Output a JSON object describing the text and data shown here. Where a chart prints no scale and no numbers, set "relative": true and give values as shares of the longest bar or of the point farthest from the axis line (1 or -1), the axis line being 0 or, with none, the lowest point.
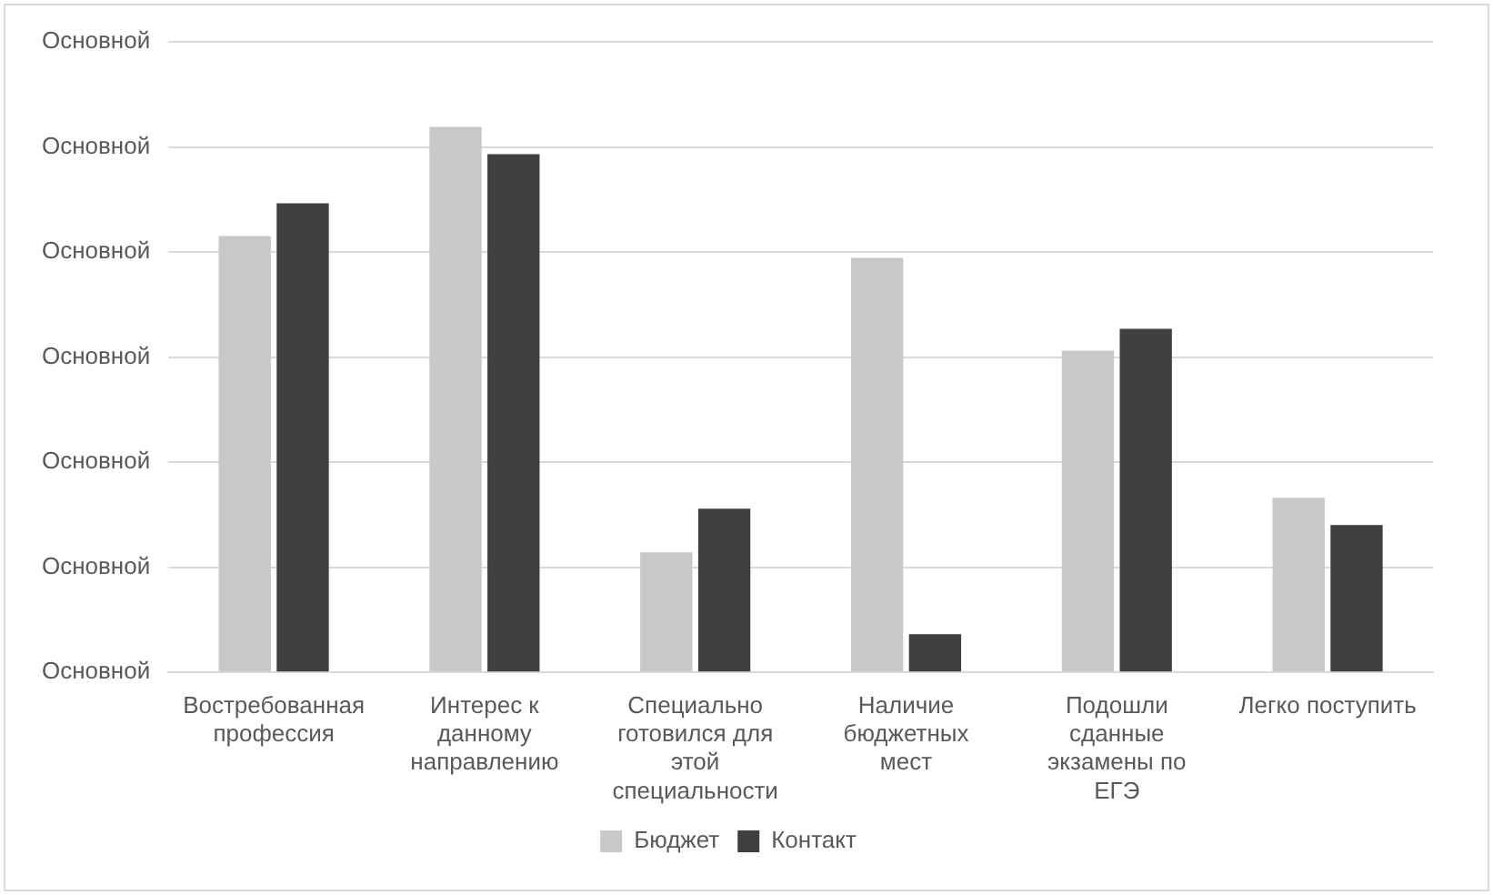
{
  "chart_data": {
    "type": "bar",
    "relative": true,
    "categories": [
      "Востребованная профессия",
      "Интерес к данному направлению",
      "Специально готовился для этой специальности",
      "Наличие бюджетных мест",
      "Подошли сданные экзамены по ЕГЭ",
      "Легко поступить"
    ],
    "series": [
      {
        "name": "Бюджет",
        "color": "#c8c8c8",
        "values": [
          0.8,
          1,
          0.22,
          0.76,
          0.59,
          0.32
        ]
      },
      {
        "name": "Контакт",
        "color": "#404040",
        "values": [
          0.86,
          0.95,
          0.3,
          0.07,
          0.63,
          0.27
        ]
      }
    ],
    "annotations": [
      "Основной",
      "Основной",
      "Основной",
      "Основной",
      "Основной",
      "Основной",
      "Основной"
    ],
    "grid": "y",
    "legend": "bottom"
  }
}
